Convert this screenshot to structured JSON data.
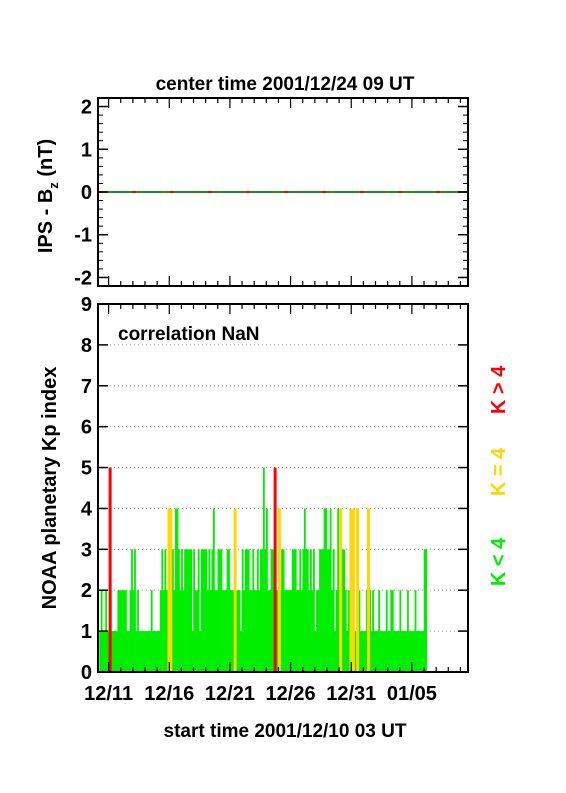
{
  "top_title": "center time 2001/12/24 09 UT",
  "bottom_title": "start time 2001/12/10 03 UT",
  "top_ylabel_main": "IPS - B",
  "top_ylabel_sub": "z",
  "top_ylabel_unit": " (nT)",
  "correlation_label": "correlation NaN",
  "legend": [
    {
      "label": "K < 4",
      "color": "#00ee00"
    },
    {
      "label": "K = 4",
      "color": "#ffd700"
    },
    {
      "label": "K > 4",
      "color": "#ff0000"
    }
  ],
  "colors": {
    "low": "#00ee00",
    "mid": "#ffd700",
    "high": "#ff0000",
    "ips_a": "#ff0000",
    "ips_b": "#228b22"
  },
  "chart_data": [
    {
      "type": "line",
      "title": "center time 2001/12/24 09 UT",
      "ylabel": "IPS - Bz (nT)",
      "ylim": [
        -2.2,
        2.2
      ],
      "yticks": [
        -2,
        -1,
        0,
        1,
        2
      ],
      "xlim": [
        0,
        30.5
      ],
      "series": [
        {
          "x": [
            0,
            30.5
          ],
          "values": [
            0,
            0
          ]
        }
      ],
      "grid": false
    },
    {
      "type": "bar",
      "xlabel": "start time 2001/12/10 03 UT",
      "ylabel": "NOAA planetary Kp index",
      "ylim": [
        0,
        9
      ],
      "yticks": [
        0,
        1,
        2,
        3,
        4,
        5,
        6,
        7,
        8,
        9
      ],
      "xlim": [
        0,
        30.5
      ],
      "xticks": [
        {
          "label": "12/11",
          "x": 0.875
        },
        {
          "label": "12/16",
          "x": 5.875
        },
        {
          "label": "12/21",
          "x": 10.875
        },
        {
          "label": "12/26",
          "x": 15.875
        },
        {
          "label": "12/31",
          "x": 20.875
        },
        {
          "label": "01/05",
          "x": 25.875
        }
      ],
      "grid": "dotted horizontal",
      "annotation": "correlation NaN",
      "interval_days": 0.125,
      "values": [
        1,
        2,
        1,
        1,
        2,
        1,
        1,
        2,
        1,
        1,
        1,
        1,
        2,
        2,
        2,
        2,
        2,
        2,
        1,
        1,
        2,
        3,
        2,
        3,
        1,
        2,
        1,
        1,
        1,
        1,
        1,
        1,
        1,
        1,
        2,
        1,
        1,
        1,
        1,
        1,
        2,
        3,
        2,
        3,
        2,
        2,
        3,
        3,
        3,
        2,
        4,
        4,
        3,
        2,
        3,
        2,
        3,
        3,
        3,
        3,
        3,
        1,
        3,
        2,
        2,
        3,
        1,
        3,
        3,
        3,
        3,
        2,
        3,
        2,
        3,
        4,
        2,
        2,
        3,
        3,
        3,
        2,
        2,
        2,
        3,
        3,
        2,
        2,
        2,
        1,
        2,
        2,
        2,
        1,
        3,
        2,
        3,
        3,
        3,
        2,
        2,
        3,
        2,
        2,
        3,
        2,
        3,
        3,
        5,
        3,
        4,
        2,
        2,
        3,
        3,
        2,
        2,
        2,
        3,
        2,
        3,
        3,
        2,
        2,
        2,
        2,
        2,
        3,
        3,
        3,
        2,
        2,
        3,
        2,
        3,
        4,
        3,
        3,
        2,
        3,
        2,
        3,
        1,
        2,
        2,
        3,
        3,
        3,
        4,
        4,
        3,
        3,
        4,
        2,
        3,
        1,
        2,
        4,
        2,
        2,
        3,
        3,
        2,
        1,
        2,
        1,
        3,
        1,
        1,
        1,
        1,
        2,
        1,
        1,
        1,
        1,
        2,
        3,
        2,
        1,
        2,
        1,
        1,
        1,
        2,
        1,
        1,
        1,
        1,
        2,
        1,
        1,
        2,
        2,
        1,
        1,
        1,
        1,
        2,
        1,
        1,
        1,
        1,
        2,
        1,
        1,
        1,
        1,
        2,
        1,
        1,
        1,
        1,
        1,
        3,
        3
      ],
      "red_markers": [
        {
          "x": 1.0,
          "value": 5
        },
        {
          "x": 14.6,
          "value": 5
        }
      ],
      "yellow_markers": [
        {
          "x": 5.85,
          "value": 4
        },
        {
          "x": 6.0,
          "value": 4
        },
        {
          "x": 11.3,
          "value": 4
        },
        {
          "x": 14.95,
          "value": 4
        },
        {
          "x": 20.0,
          "value": 4
        },
        {
          "x": 20.85,
          "value": 4
        },
        {
          "x": 21.05,
          "value": 4
        },
        {
          "x": 21.4,
          "value": 4
        },
        {
          "x": 22.3,
          "value": 4
        }
      ]
    }
  ]
}
